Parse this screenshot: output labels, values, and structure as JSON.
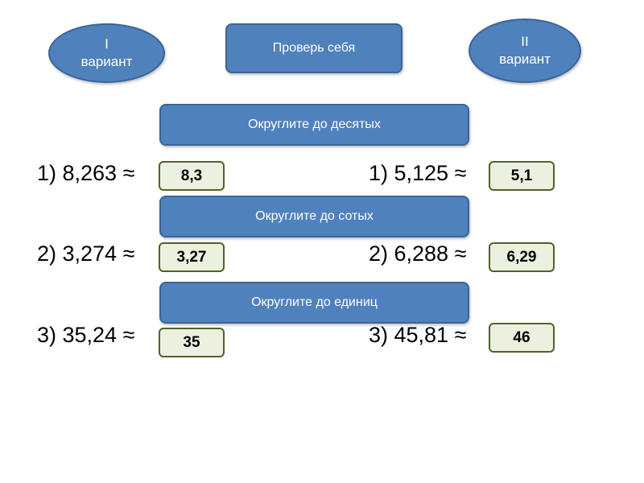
{
  "variant_1": {
    "line1": "I",
    "line2": "вариант"
  },
  "variant_2": {
    "line1": "II",
    "line2": "вариант"
  },
  "check_button": "Проверь себя",
  "headers": {
    "tenths": "Округлите до десятых",
    "hundredths": "Округлите до сотых",
    "units": "Округлите до единиц"
  },
  "variant_1_tasks": [
    {
      "expression": "1) 8,263 ≈",
      "answer": "8,3"
    },
    {
      "expression": "2) 3,274 ≈",
      "answer": "3,27"
    },
    {
      "expression": "3) 35,24 ≈",
      "answer": "35"
    }
  ],
  "variant_2_tasks": [
    {
      "expression": "1) 5,125 ≈",
      "answer": "5,1"
    },
    {
      "expression": "2) 6,288 ≈",
      "answer": "6,29"
    },
    {
      "expression": "3) 45,81 ≈",
      "answer": "46"
    }
  ],
  "colors": {
    "button_fill": "#4f81bd",
    "button_border": "#3a6496",
    "answer_fill": "#ebf1de",
    "answer_border": "#4f6228"
  }
}
